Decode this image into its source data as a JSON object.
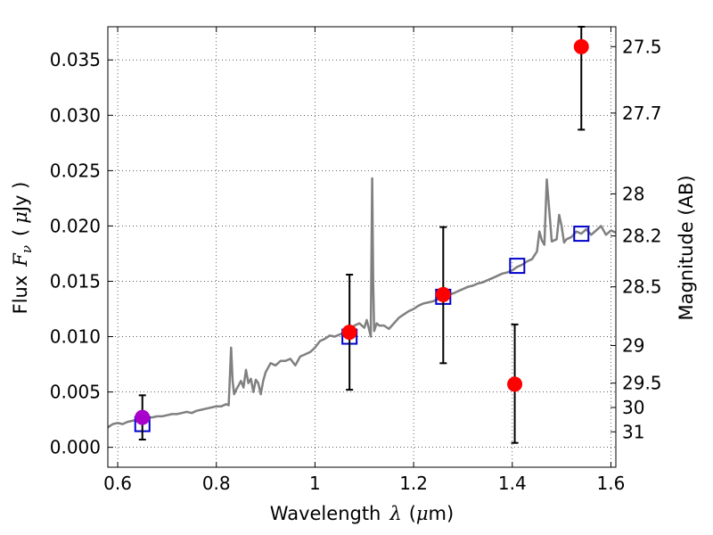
{
  "chart_data": {
    "type": "scatter",
    "title": "",
    "xlabel": {
      "text": "Wavelength",
      "symbol": "λ",
      "unit_open": "(",
      "unit_mu": "μ",
      "unit_rest": "m)"
    },
    "ylabel": {
      "text": "Flux",
      "symbol": "F",
      "subscript": "ν",
      "unit_open": "(",
      "unit_mu": "μ",
      "unit_rest": "Jy )"
    },
    "y2label": "Magnitude (AB)",
    "xlim": [
      0.58,
      1.61
    ],
    "ylim": [
      -0.0018,
      0.038
    ],
    "grid": true,
    "grid_style": "dotted",
    "x_ticks": [
      {
        "value": 0.6,
        "label": "0.6"
      },
      {
        "value": 0.8,
        "label": "0.8"
      },
      {
        "value": 1.0,
        "label": "1"
      },
      {
        "value": 1.2,
        "label": "1.2"
      },
      {
        "value": 1.4,
        "label": "1.4"
      },
      {
        "value": 1.6,
        "label": "1.6"
      }
    ],
    "y_ticks": [
      {
        "value": 0.0,
        "label": "0.000"
      },
      {
        "value": 0.005,
        "label": "0.005"
      },
      {
        "value": 0.01,
        "label": "0.010"
      },
      {
        "value": 0.015,
        "label": "0.015"
      },
      {
        "value": 0.02,
        "label": "0.020"
      },
      {
        "value": 0.025,
        "label": "0.025"
      },
      {
        "value": 0.03,
        "label": "0.030"
      },
      {
        "value": 0.035,
        "label": "0.035"
      }
    ],
    "y2_ticks": [
      {
        "flux": 0.0362,
        "label": "27.5"
      },
      {
        "flux": 0.0302,
        "label": "27.7"
      },
      {
        "flux": 0.0229,
        "label": "28"
      },
      {
        "flux": 0.0191,
        "label": "28.2"
      },
      {
        "flux": 0.0145,
        "label": "28.5"
      },
      {
        "flux": 0.0092,
        "label": "29"
      },
      {
        "flux": 0.0058,
        "label": "29.5"
      },
      {
        "flux": 0.0036,
        "label": "30"
      },
      {
        "flux": 0.0014,
        "label": "31"
      }
    ],
    "series": [
      {
        "kind": "spectrum_line",
        "color": "#808080",
        "x": [
          0.58,
          0.59,
          0.6,
          0.61,
          0.62,
          0.63,
          0.64,
          0.65,
          0.66,
          0.67,
          0.68,
          0.69,
          0.7,
          0.71,
          0.72,
          0.73,
          0.74,
          0.75,
          0.76,
          0.77,
          0.78,
          0.79,
          0.8,
          0.81,
          0.82,
          0.825,
          0.83,
          0.833,
          0.836,
          0.84,
          0.845,
          0.85,
          0.855,
          0.86,
          0.865,
          0.87,
          0.875,
          0.88,
          0.885,
          0.89,
          0.895,
          0.9,
          0.91,
          0.92,
          0.93,
          0.94,
          0.95,
          0.96,
          0.97,
          0.98,
          0.99,
          1.0,
          1.01,
          1.02,
          1.03,
          1.04,
          1.05,
          1.06,
          1.07,
          1.08,
          1.09,
          1.1,
          1.105,
          1.11,
          1.113,
          1.116,
          1.118,
          1.12,
          1.125,
          1.13,
          1.14,
          1.15,
          1.16,
          1.17,
          1.18,
          1.19,
          1.2,
          1.21,
          1.22,
          1.23,
          1.24,
          1.25,
          1.26,
          1.27,
          1.28,
          1.29,
          1.3,
          1.31,
          1.32,
          1.33,
          1.34,
          1.35,
          1.36,
          1.37,
          1.38,
          1.39,
          1.4,
          1.41,
          1.42,
          1.43,
          1.44,
          1.45,
          1.455,
          1.46,
          1.465,
          1.47,
          1.48,
          1.49,
          1.495,
          1.5,
          1.505,
          1.51,
          1.52,
          1.53,
          1.54,
          1.55,
          1.56,
          1.57,
          1.58,
          1.59,
          1.6,
          1.61
        ],
        "y": [
          0.0018,
          0.0021,
          0.0022,
          0.0021,
          0.0023,
          0.0024,
          0.0025,
          0.0026,
          0.0027,
          0.0027,
          0.0028,
          0.0028,
          0.0029,
          0.003,
          0.003,
          0.0031,
          0.0032,
          0.0031,
          0.0033,
          0.0034,
          0.0035,
          0.0036,
          0.0037,
          0.0037,
          0.0039,
          0.0038,
          0.009,
          0.006,
          0.0048,
          0.0052,
          0.0056,
          0.006,
          0.0054,
          0.007,
          0.0058,
          0.0062,
          0.005,
          0.0061,
          0.0058,
          0.0048,
          0.006,
          0.0068,
          0.0076,
          0.0074,
          0.0078,
          0.0078,
          0.008,
          0.0074,
          0.0082,
          0.0084,
          0.0086,
          0.009,
          0.0096,
          0.0098,
          0.0101,
          0.01,
          0.0102,
          0.0104,
          0.0106,
          0.011,
          0.0112,
          0.0108,
          0.0115,
          0.0106,
          0.01,
          0.0243,
          0.015,
          0.0105,
          0.0112,
          0.011,
          0.011,
          0.0107,
          0.0112,
          0.0117,
          0.012,
          0.0123,
          0.0125,
          0.0128,
          0.013,
          0.0131,
          0.0132,
          0.0134,
          0.0136,
          0.0138,
          0.0139,
          0.0141,
          0.0143,
          0.0145,
          0.0146,
          0.0148,
          0.0149,
          0.0151,
          0.0153,
          0.0155,
          0.0157,
          0.0158,
          0.016,
          0.0163,
          0.0165,
          0.0168,
          0.017,
          0.0177,
          0.0195,
          0.0187,
          0.0183,
          0.0242,
          0.0186,
          0.0188,
          0.021,
          0.02,
          0.0185,
          0.0188,
          0.019,
          0.0195,
          0.0193,
          0.0197,
          0.0192,
          0.0196,
          0.02,
          0.0192,
          0.0196,
          0.0194
        ]
      },
      {
        "kind": "model_points",
        "marker": "open-square",
        "color": "#0000cc",
        "x": [
          0.65,
          1.07,
          1.26,
          1.41,
          1.54
        ],
        "y": [
          0.0021,
          0.01,
          0.0136,
          0.0164,
          0.0193
        ]
      },
      {
        "kind": "observed_points",
        "marker": "filled-circle",
        "color": "#ff0000",
        "x": [
          1.07,
          1.26,
          1.405,
          1.54
        ],
        "y": [
          0.0104,
          0.0138,
          0.0057,
          0.0362
        ],
        "yerr_low": [
          0.0052,
          0.0076,
          0.0004,
          0.0287
        ],
        "yerr_high": [
          0.0156,
          0.0199,
          0.0111,
          0.038
        ]
      },
      {
        "kind": "observed_points_alt",
        "marker": "filled-circle",
        "color": "#aa00cc",
        "x": [
          0.65
        ],
        "y": [
          0.0027
        ],
        "yerr_low": [
          0.0007
        ],
        "yerr_high": [
          0.0047
        ]
      }
    ]
  }
}
